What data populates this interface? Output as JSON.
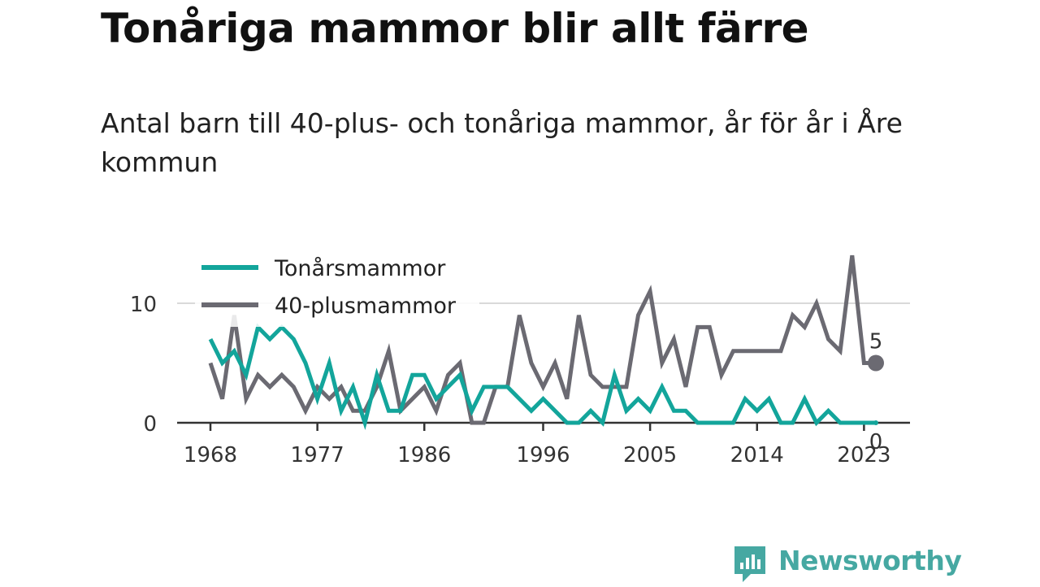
{
  "header": {
    "title": "Tonåriga mammor blir allt färre",
    "subtitle": "Antal barn till 40-plus- och tonåriga mammor, år för år i Åre kommun"
  },
  "brand": {
    "name": "Newsworthy",
    "color": "#46a8a2"
  },
  "chart_data": {
    "type": "line",
    "x": [
      1968,
      1969,
      1970,
      1971,
      1972,
      1973,
      1974,
      1975,
      1976,
      1977,
      1978,
      1979,
      1980,
      1981,
      1982,
      1983,
      1984,
      1985,
      1986,
      1987,
      1988,
      1989,
      1990,
      1991,
      1992,
      1993,
      1994,
      1995,
      1996,
      1997,
      1998,
      1999,
      2000,
      2001,
      2002,
      2003,
      2004,
      2005,
      2006,
      2007,
      2008,
      2009,
      2010,
      2011,
      2012,
      2013,
      2014,
      2015,
      2016,
      2017,
      2018,
      2019,
      2020,
      2021,
      2022,
      2023,
      2024
    ],
    "series": [
      {
        "name": "Tonårsmammor",
        "color": "#13a59b",
        "values": [
          7,
          5,
          6,
          4,
          8,
          7,
          8,
          7,
          5,
          2,
          5,
          1,
          3,
          0,
          4,
          1,
          1,
          4,
          4,
          2,
          3,
          4,
          1,
          3,
          3,
          3,
          2,
          1,
          2,
          1,
          0,
          0,
          1,
          0,
          4,
          1,
          2,
          1,
          3,
          1,
          1,
          0,
          0,
          0,
          0,
          2,
          1,
          2,
          0,
          0,
          2,
          0,
          1,
          0,
          0,
          0,
          0
        ]
      },
      {
        "name": "40-plusmammor",
        "color": "#6b6a72",
        "values": [
          5,
          2,
          9,
          2,
          4,
          3,
          4,
          3,
          1,
          3,
          2,
          3,
          1,
          1,
          3,
          6,
          1,
          2,
          3,
          1,
          4,
          5,
          0,
          0,
          3,
          3,
          9,
          5,
          3,
          5,
          2,
          9,
          4,
          3,
          3,
          3,
          9,
          11,
          5,
          7,
          3,
          8,
          8,
          4,
          6,
          6,
          6,
          6,
          6,
          9,
          8,
          10,
          7,
          6,
          14,
          5,
          5
        ]
      }
    ],
    "x_ticks": [
      1968,
      1977,
      1986,
      1996,
      2005,
      2014,
      2023
    ],
    "y_ticks": [
      0,
      10
    ],
    "ylim": [
      0,
      15
    ],
    "end_labels": {
      "tonars": "0",
      "plus40": "5"
    },
    "grid": "horizontal",
    "legend_position": "top-left"
  }
}
